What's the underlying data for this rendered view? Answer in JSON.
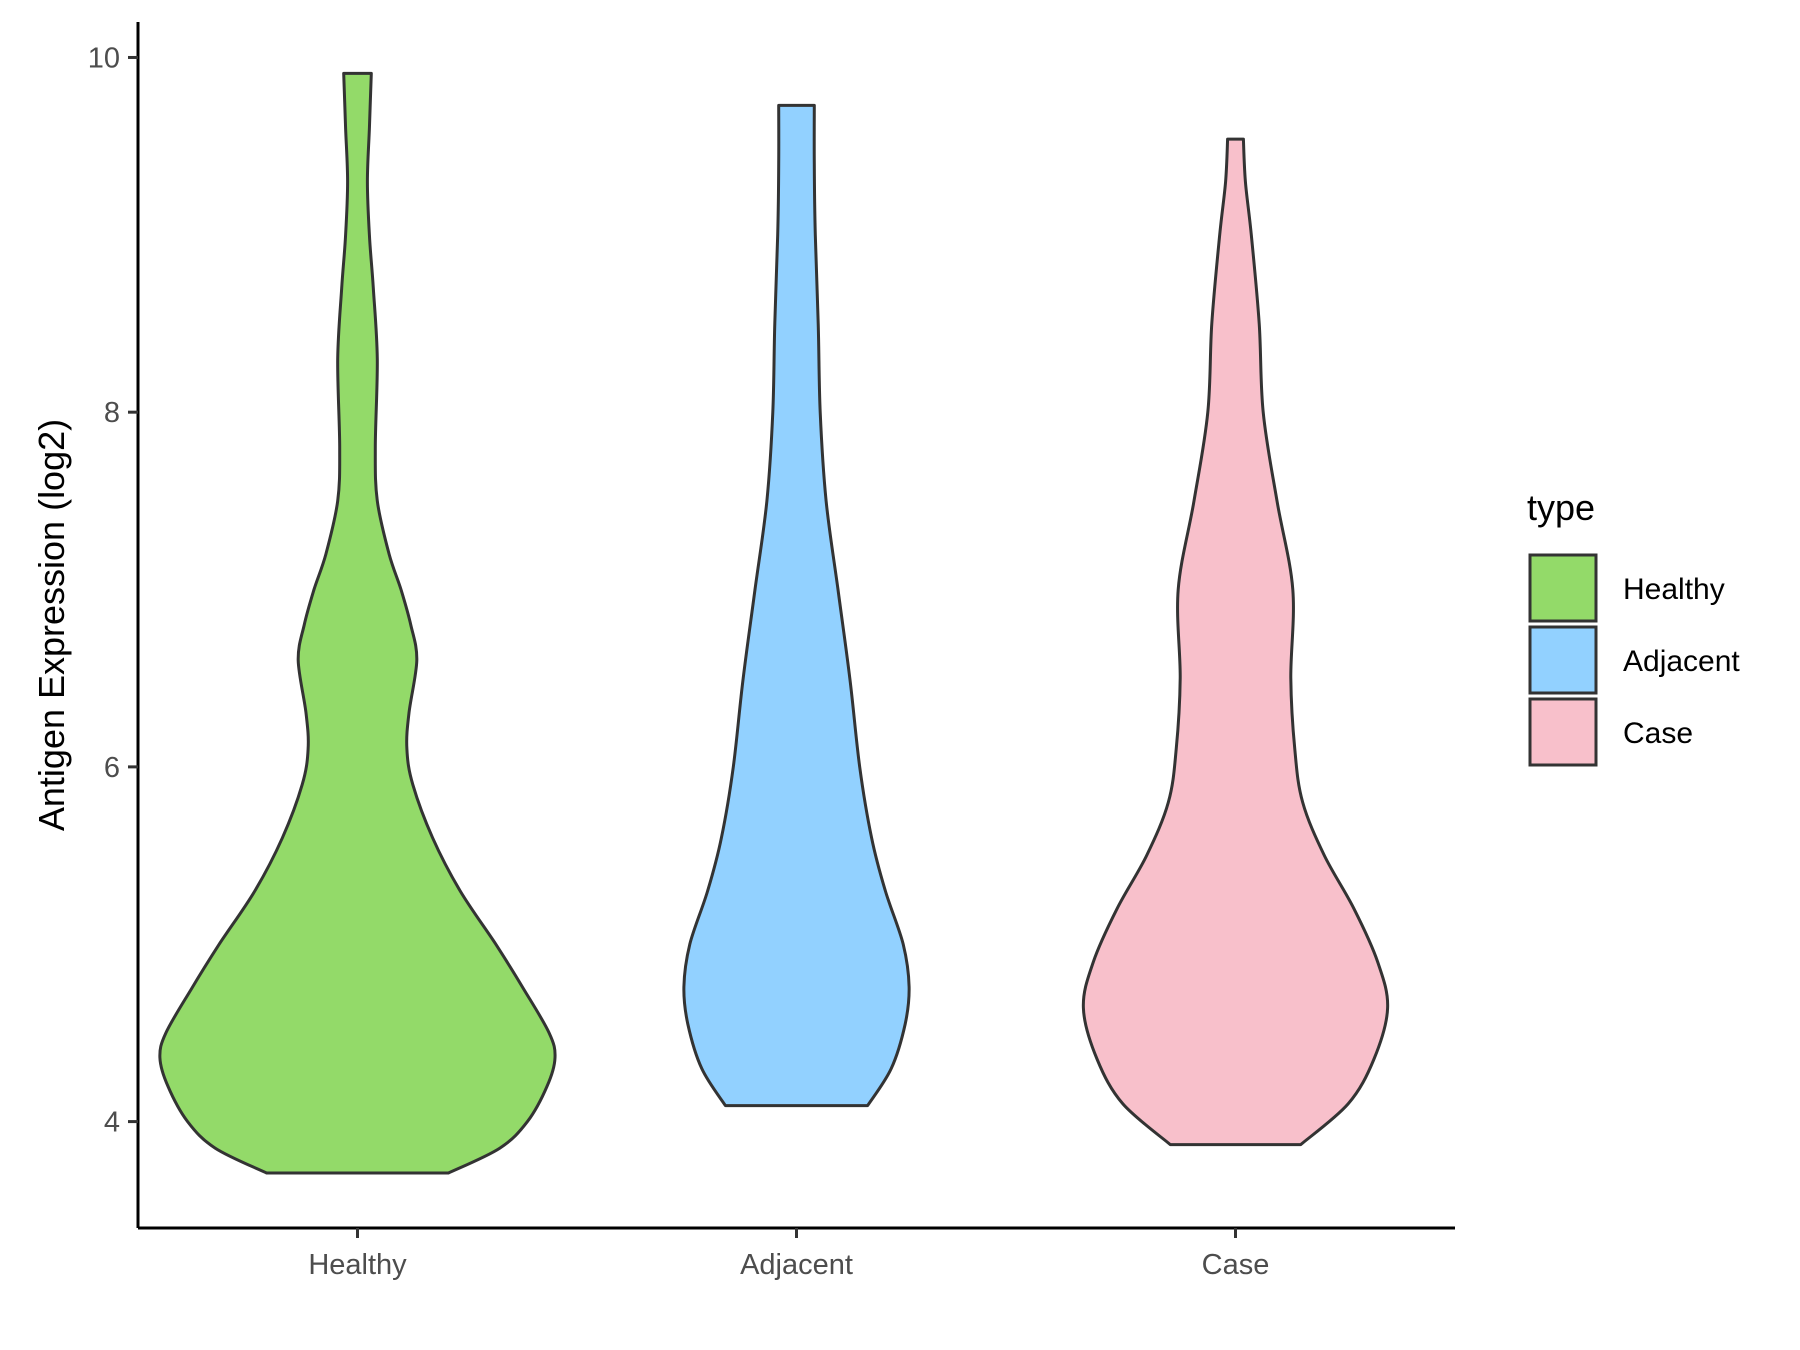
{
  "chart_data": {
    "type": "violin",
    "title": "",
    "xlabel": "",
    "ylabel": "Antigen Expression (log2)",
    "ylim": [
      3.4,
      10.2
    ],
    "yticks": [
      4,
      6,
      8,
      10
    ],
    "categories": [
      "Healthy",
      "Adjacent",
      "Case"
    ],
    "grid": false,
    "legend": {
      "title": "type",
      "position": "right",
      "entries": [
        {
          "name": "Healthy",
          "color": "#93DA69"
        },
        {
          "name": "Adjacent",
          "color": "#92D1FF"
        },
        {
          "name": "Case",
          "color": "#F8C0CB"
        }
      ]
    },
    "series": [
      {
        "name": "Healthy",
        "color": "#93DA69",
        "min": 3.71,
        "max": 9.91,
        "density_profile": [
          [
            3.71,
            0.46
          ],
          [
            3.85,
            0.72
          ],
          [
            4.0,
            0.86
          ],
          [
            4.2,
            0.96
          ],
          [
            4.36,
            1.0
          ],
          [
            4.5,
            0.97
          ],
          [
            4.75,
            0.84
          ],
          [
            5.0,
            0.7
          ],
          [
            5.3,
            0.52
          ],
          [
            5.6,
            0.38
          ],
          [
            5.9,
            0.28
          ],
          [
            6.1,
            0.25
          ],
          [
            6.3,
            0.26
          ],
          [
            6.6,
            0.3
          ],
          [
            6.8,
            0.27
          ],
          [
            7.0,
            0.22
          ],
          [
            7.2,
            0.16
          ],
          [
            7.5,
            0.1
          ],
          [
            7.8,
            0.09
          ],
          [
            8.3,
            0.1
          ],
          [
            8.7,
            0.08
          ],
          [
            9.0,
            0.06
          ],
          [
            9.3,
            0.05
          ],
          [
            9.6,
            0.06
          ],
          [
            9.91,
            0.07
          ]
        ]
      },
      {
        "name": "Adjacent",
        "color": "#92D1FF",
        "min": 4.09,
        "max": 9.73,
        "density_profile": [
          [
            4.09,
            0.36
          ],
          [
            4.3,
            0.48
          ],
          [
            4.55,
            0.55
          ],
          [
            4.76,
            0.57
          ],
          [
            5.0,
            0.54
          ],
          [
            5.3,
            0.45
          ],
          [
            5.6,
            0.38
          ],
          [
            6.0,
            0.32
          ],
          [
            6.5,
            0.27
          ],
          [
            7.0,
            0.21
          ],
          [
            7.5,
            0.15
          ],
          [
            8.0,
            0.12
          ],
          [
            8.5,
            0.11
          ],
          [
            9.0,
            0.095
          ],
          [
            9.4,
            0.09
          ],
          [
            9.73,
            0.09
          ]
        ]
      },
      {
        "name": "Case",
        "color": "#F8C0CB",
        "min": 3.87,
        "max": 9.54,
        "density_profile": [
          [
            3.87,
            0.33
          ],
          [
            4.1,
            0.57
          ],
          [
            4.35,
            0.7
          ],
          [
            4.64,
            0.77
          ],
          [
            4.9,
            0.72
          ],
          [
            5.2,
            0.6
          ],
          [
            5.5,
            0.45
          ],
          [
            5.8,
            0.34
          ],
          [
            6.1,
            0.3
          ],
          [
            6.5,
            0.28
          ],
          [
            7.0,
            0.29
          ],
          [
            7.5,
            0.21
          ],
          [
            8.0,
            0.14
          ],
          [
            8.5,
            0.12
          ],
          [
            9.0,
            0.08
          ],
          [
            9.3,
            0.05
          ],
          [
            9.54,
            0.04
          ]
        ]
      }
    ]
  }
}
